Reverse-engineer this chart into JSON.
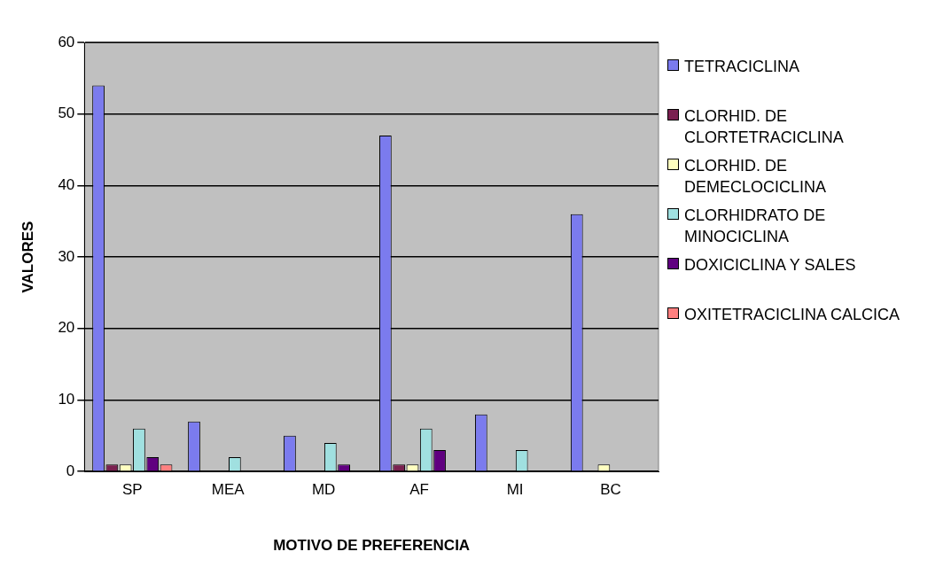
{
  "chart_data": {
    "type": "bar",
    "xlabel": "MOTIVO DE PREFERENCIA",
    "ylabel": "VALORES",
    "categories": [
      "SP",
      "MEA",
      "MD",
      "AF",
      "MI",
      "BC"
    ],
    "series": [
      {
        "name": "TETRACICLINA",
        "color": "#7b7bee",
        "values": [
          54,
          7,
          5,
          47,
          8,
          36
        ]
      },
      {
        "name": "CLORHID. DE CLORTETRACICLINA",
        "color": "#7a2050",
        "values": [
          1,
          0,
          0,
          1,
          0,
          0
        ]
      },
      {
        "name": "CLORHID. DE DEMECLOCICLINA",
        "color": "#ffffc0",
        "values": [
          1,
          0,
          0,
          1,
          0,
          1
        ]
      },
      {
        "name": "CLORHIDRATO DE MINOCICLINA",
        "color": "#a0e0e0",
        "values": [
          6,
          2,
          4,
          6,
          3,
          0
        ]
      },
      {
        "name": "DOXICICLINA Y SALES",
        "color": "#600080",
        "values": [
          2,
          0,
          1,
          3,
          0,
          0
        ]
      },
      {
        "name": "OXITETRACICLINA CALCICA",
        "color": "#ff8080",
        "values": [
          1,
          0,
          0,
          0,
          0,
          0
        ]
      }
    ],
    "ylim": [
      0,
      60
    ],
    "yticks": [
      0,
      10,
      20,
      30,
      40,
      50,
      60
    ],
    "grid": "y",
    "legend": "right"
  }
}
